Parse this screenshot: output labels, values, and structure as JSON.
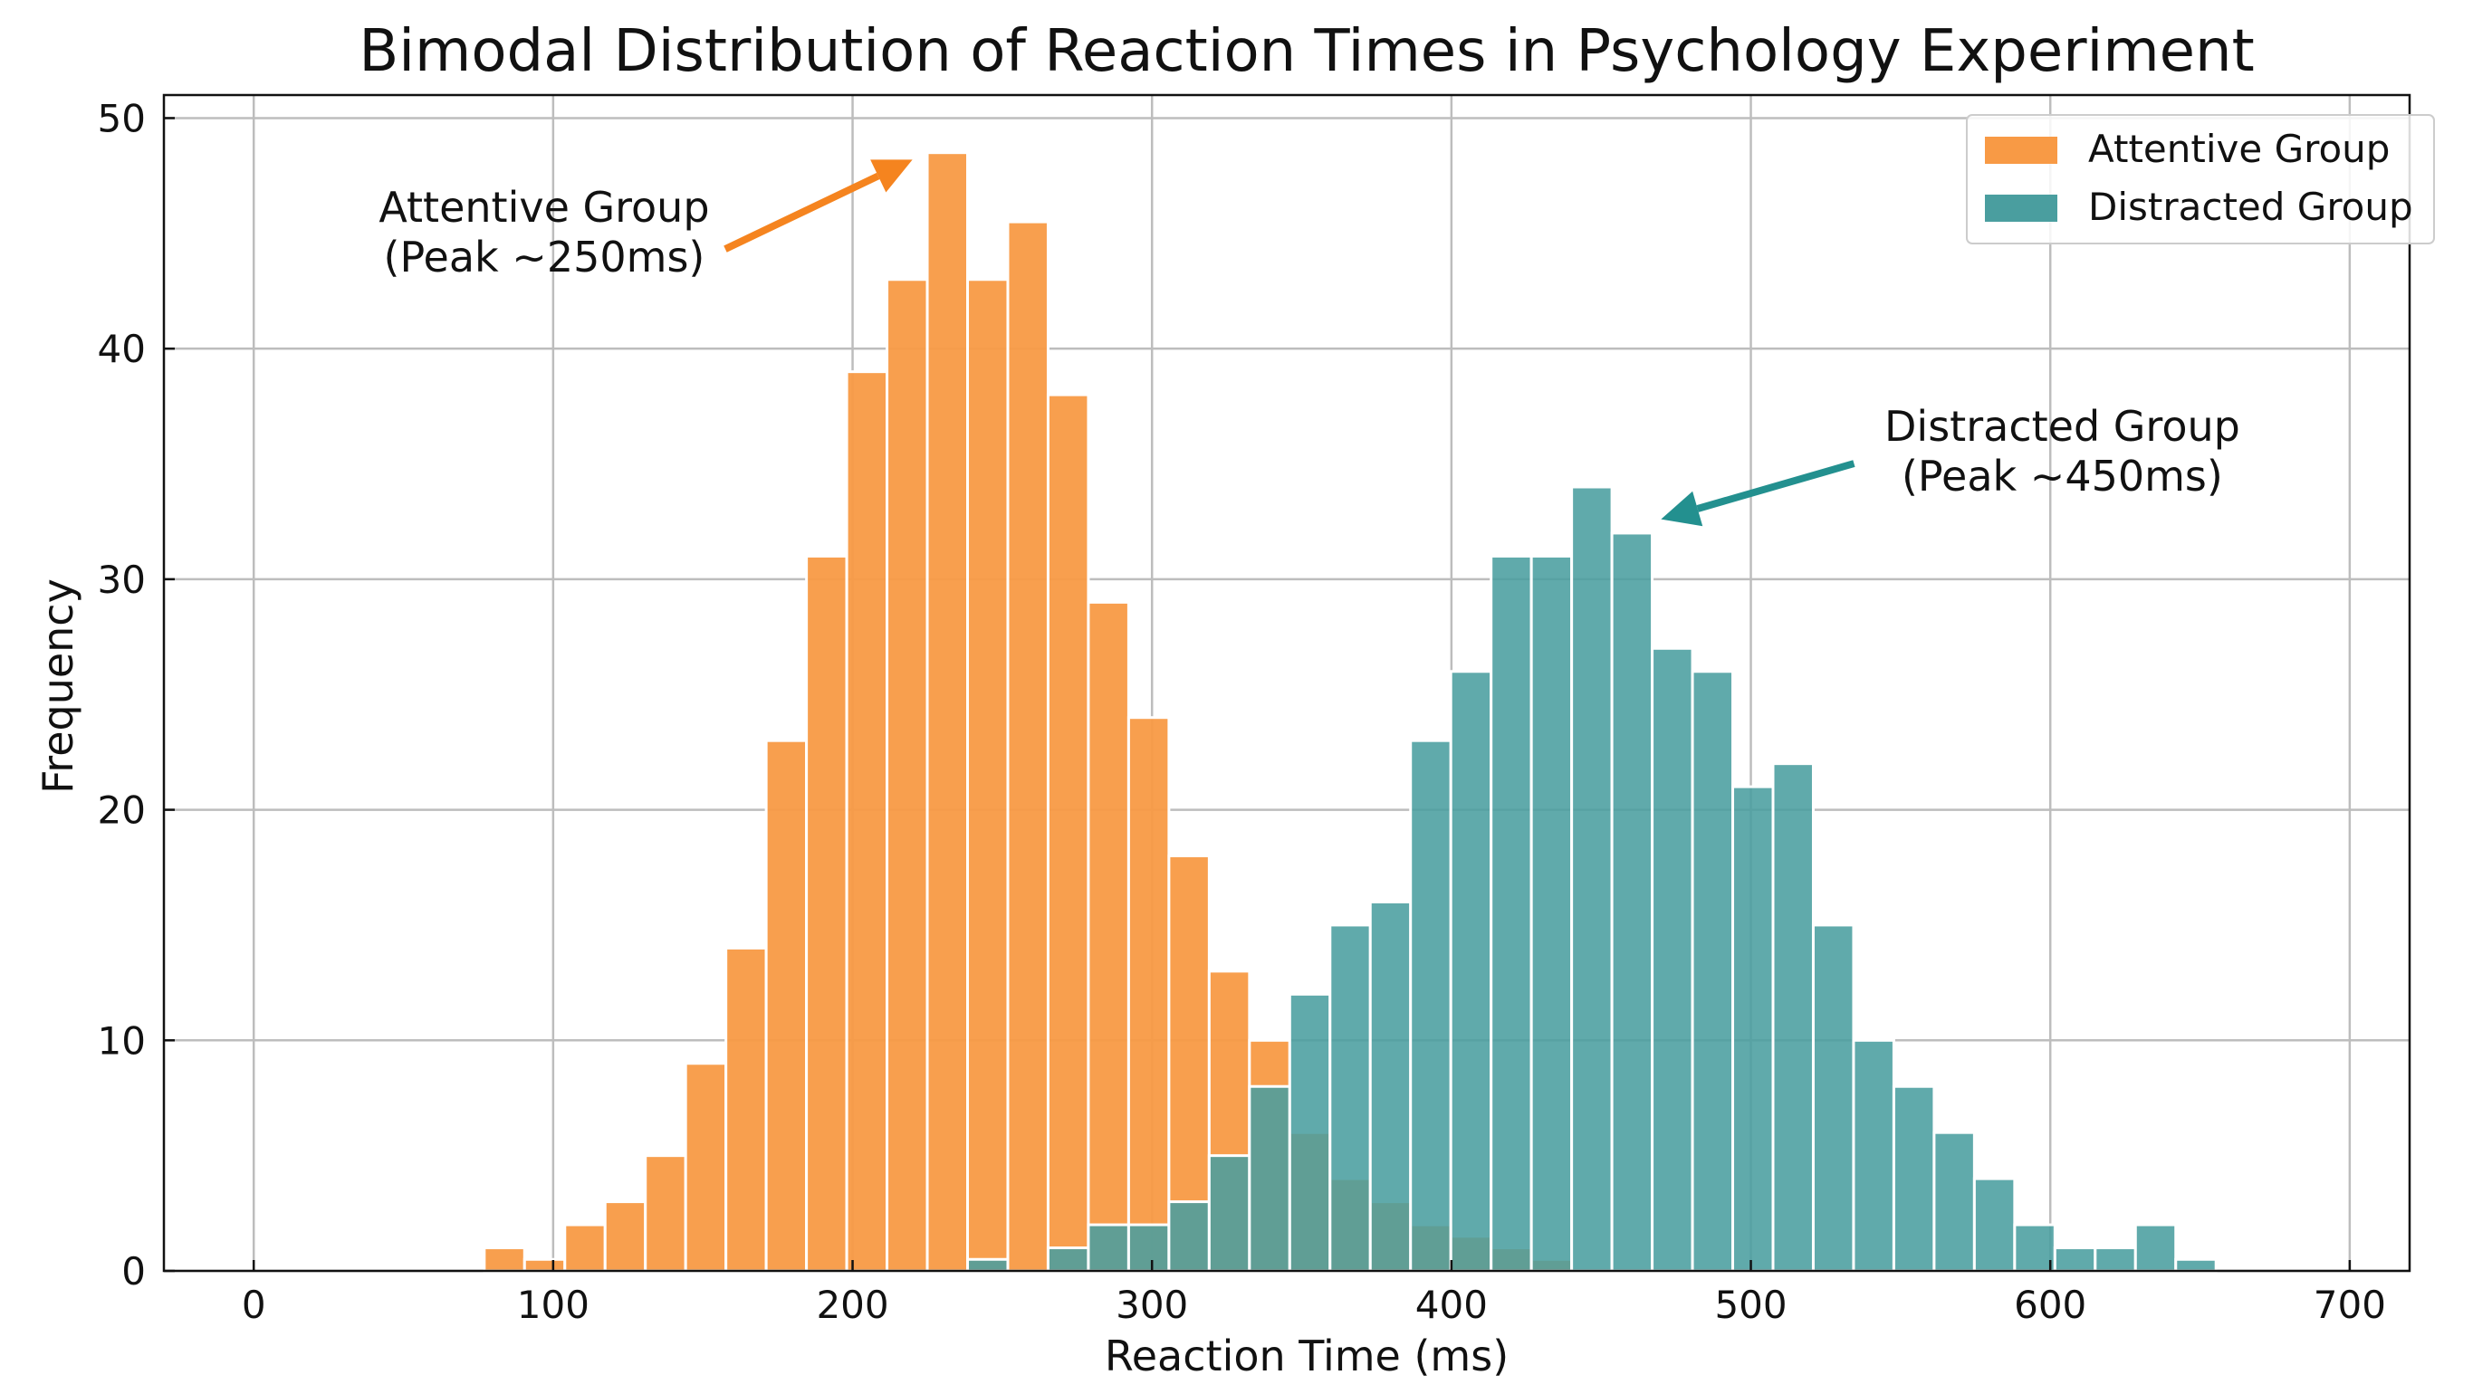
{
  "chart_data": {
    "type": "bar",
    "subtype": "overlapping-histogram",
    "title": "Bimodal Distribution of Reaction Times in Psychology Experiment",
    "xlabel": "Reaction Time (ms)",
    "ylabel": "Frequency",
    "xlim": [
      -30,
      720
    ],
    "ylim": [
      0,
      51
    ],
    "xticks": [
      0,
      100,
      200,
      300,
      400,
      500,
      600,
      700
    ],
    "yticks": [
      0,
      10,
      20,
      30,
      40,
      50
    ],
    "grid": true,
    "legend_position": "top-right",
    "bin_start": 77,
    "bin_width": 13.45,
    "series": [
      {
        "name": "Attentive Group",
        "color": "#f89a45",
        "first_bin": 0,
        "values": [
          1,
          0.5,
          2,
          3,
          5,
          9,
          14,
          23,
          31,
          39,
          43,
          48.5,
          43,
          45.5,
          38,
          29,
          24,
          18,
          13,
          10,
          6,
          4,
          3,
          2,
          1.5,
          1,
          0.5
        ]
      },
      {
        "name": "Distracted Group",
        "color": "#4a9e9f",
        "first_bin": 12,
        "values": [
          0.5,
          0,
          1,
          2,
          2,
          3,
          5,
          8,
          12,
          15,
          16,
          23,
          26,
          31,
          31,
          34,
          32,
          27,
          26,
          21,
          22,
          15,
          10,
          8,
          6,
          4,
          2,
          1,
          1,
          2,
          0.5
        ]
      }
    ],
    "annotations": [
      {
        "lines": [
          "Attentive Group",
          "(Peak ~250ms)"
        ],
        "color": "#f5841f",
        "text_x": 97,
        "text_y": 45.5,
        "arrow_x": 220,
        "arrow_y": 48.2
      },
      {
        "lines": [
          "Distracted Group",
          "(Peak ~450ms)"
        ],
        "color": "#23908f",
        "text_x": 604,
        "text_y": 36,
        "arrow_x": 470,
        "arrow_y": 32.6
      }
    ]
  }
}
